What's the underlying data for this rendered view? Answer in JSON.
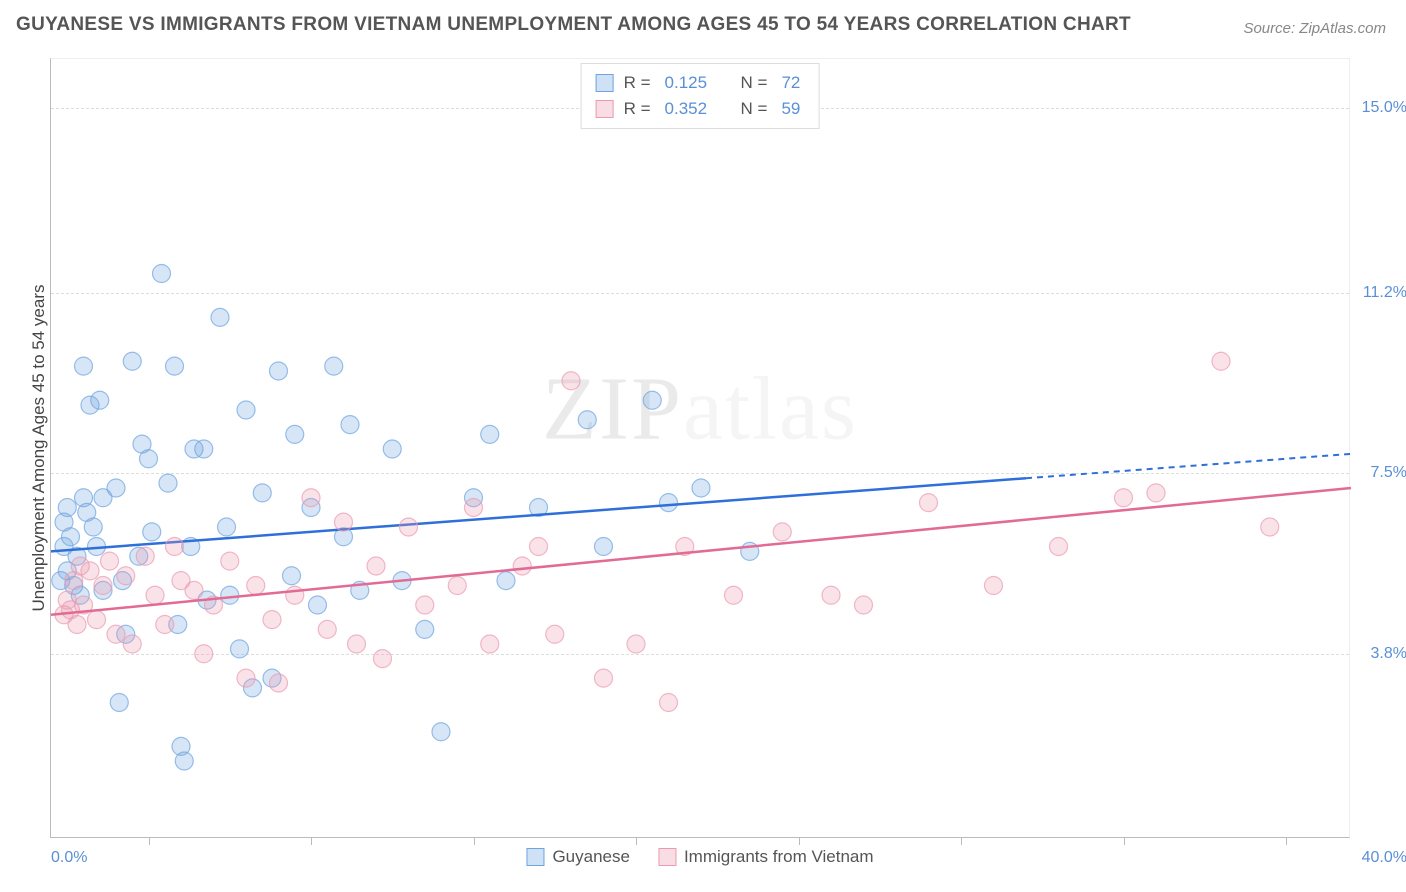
{
  "title": "GUYANESE VS IMMIGRANTS FROM VIETNAM UNEMPLOYMENT AMONG AGES 45 TO 54 YEARS CORRELATION CHART",
  "source_label": "Source: ZipAtlas.com",
  "watermark": "ZIPatlas",
  "chart": {
    "type": "scatter",
    "y_label": "Unemployment Among Ages 45 to 54 years",
    "xlim": [
      0,
      40
    ],
    "ylim": [
      0,
      16
    ],
    "x_min_label": "0.0%",
    "x_max_label": "40.0%",
    "y_tick_labels": [
      {
        "value": 15.0,
        "label": "15.0%"
      },
      {
        "value": 11.2,
        "label": "11.2%"
      },
      {
        "value": 7.5,
        "label": "7.5%"
      },
      {
        "value": 3.8,
        "label": "3.8%"
      }
    ],
    "gridlines_y": [
      15.0,
      11.2,
      7.5,
      3.8
    ],
    "x_ticks": [
      3,
      8,
      13,
      18,
      23,
      28,
      33,
      38
    ],
    "background_color": "#ffffff",
    "grid_color": "#dddddd",
    "axis_color": "#bbbbbb",
    "marker_radius": 9,
    "marker_fill_opacity": 0.28,
    "marker_stroke_opacity": 0.7,
    "line_width": 2.5,
    "series": [
      {
        "id": "guyanese",
        "label": "Guyanese",
        "color": "#6fa4e0",
        "line_color": "#2e6fd9",
        "r": "0.125",
        "n": "72",
        "trend": {
          "x1": 0,
          "y1": 5.9,
          "x2": 30,
          "y2": 7.4,
          "dash_x2": 40,
          "dash_y2": 7.9
        },
        "points": [
          [
            0.3,
            5.3
          ],
          [
            0.5,
            5.5
          ],
          [
            0.4,
            6.0
          ],
          [
            0.6,
            6.2
          ],
          [
            0.4,
            6.5
          ],
          [
            0.5,
            6.8
          ],
          [
            0.7,
            5.2
          ],
          [
            0.8,
            5.8
          ],
          [
            0.9,
            5.0
          ],
          [
            1.0,
            7.0
          ],
          [
            1.0,
            9.7
          ],
          [
            1.1,
            6.7
          ],
          [
            1.2,
            8.9
          ],
          [
            1.3,
            6.4
          ],
          [
            1.4,
            6.0
          ],
          [
            1.5,
            9.0
          ],
          [
            1.6,
            7.0
          ],
          [
            1.6,
            5.1
          ],
          [
            2.0,
            7.2
          ],
          [
            2.1,
            2.8
          ],
          [
            2.2,
            5.3
          ],
          [
            2.3,
            4.2
          ],
          [
            2.5,
            9.8
          ],
          [
            2.7,
            5.8
          ],
          [
            2.8,
            8.1
          ],
          [
            3.0,
            7.8
          ],
          [
            3.1,
            6.3
          ],
          [
            3.4,
            11.6
          ],
          [
            3.6,
            7.3
          ],
          [
            3.8,
            9.7
          ],
          [
            3.9,
            4.4
          ],
          [
            4.0,
            1.9
          ],
          [
            4.1,
            1.6
          ],
          [
            4.3,
            6.0
          ],
          [
            4.4,
            8.0
          ],
          [
            4.7,
            8.0
          ],
          [
            4.8,
            4.9
          ],
          [
            5.2,
            10.7
          ],
          [
            5.4,
            6.4
          ],
          [
            5.5,
            5.0
          ],
          [
            5.8,
            3.9
          ],
          [
            6.0,
            8.8
          ],
          [
            6.2,
            3.1
          ],
          [
            6.5,
            7.1
          ],
          [
            6.8,
            3.3
          ],
          [
            7.0,
            9.6
          ],
          [
            7.4,
            5.4
          ],
          [
            7.5,
            8.3
          ],
          [
            8.0,
            6.8
          ],
          [
            8.2,
            4.8
          ],
          [
            8.7,
            9.7
          ],
          [
            9.0,
            6.2
          ],
          [
            9.2,
            8.5
          ],
          [
            9.5,
            5.1
          ],
          [
            10.5,
            8.0
          ],
          [
            10.8,
            5.3
          ],
          [
            11.5,
            4.3
          ],
          [
            12.0,
            2.2
          ],
          [
            13.0,
            7.0
          ],
          [
            13.5,
            8.3
          ],
          [
            14.0,
            5.3
          ],
          [
            15.0,
            6.8
          ],
          [
            16.5,
            8.6
          ],
          [
            17.0,
            6.0
          ],
          [
            18.5,
            9.0
          ],
          [
            19.0,
            6.9
          ],
          [
            20.0,
            7.2
          ],
          [
            21.5,
            5.9
          ]
        ]
      },
      {
        "id": "vietnam",
        "label": "Immigrants from Vietnam",
        "color": "#eb9ab0",
        "line_color": "#e16b95",
        "r": "0.352",
        "n": "59",
        "trend": {
          "x1": 0,
          "y1": 4.6,
          "x2": 40,
          "y2": 7.2,
          "dash_x2": null,
          "dash_y2": null
        },
        "points": [
          [
            0.4,
            4.6
          ],
          [
            0.5,
            4.9
          ],
          [
            0.6,
            4.7
          ],
          [
            0.7,
            5.3
          ],
          [
            0.8,
            4.4
          ],
          [
            0.9,
            5.6
          ],
          [
            1.0,
            4.8
          ],
          [
            1.2,
            5.5
          ],
          [
            1.4,
            4.5
          ],
          [
            1.6,
            5.2
          ],
          [
            1.8,
            5.7
          ],
          [
            2.0,
            4.2
          ],
          [
            2.3,
            5.4
          ],
          [
            2.5,
            4.0
          ],
          [
            2.9,
            5.8
          ],
          [
            3.2,
            5.0
          ],
          [
            3.5,
            4.4
          ],
          [
            3.8,
            6.0
          ],
          [
            4.0,
            5.3
          ],
          [
            4.4,
            5.1
          ],
          [
            4.7,
            3.8
          ],
          [
            5.0,
            4.8
          ],
          [
            5.5,
            5.7
          ],
          [
            6.0,
            3.3
          ],
          [
            6.3,
            5.2
          ],
          [
            6.8,
            4.5
          ],
          [
            7.0,
            3.2
          ],
          [
            7.5,
            5.0
          ],
          [
            8.0,
            7.0
          ],
          [
            8.5,
            4.3
          ],
          [
            9.0,
            6.5
          ],
          [
            9.4,
            4.0
          ],
          [
            10.0,
            5.6
          ],
          [
            10.2,
            3.7
          ],
          [
            11.0,
            6.4
          ],
          [
            11.5,
            4.8
          ],
          [
            12.5,
            5.2
          ],
          [
            13.0,
            6.8
          ],
          [
            13.5,
            4.0
          ],
          [
            14.5,
            5.6
          ],
          [
            15.0,
            6.0
          ],
          [
            15.5,
            4.2
          ],
          [
            16.0,
            9.4
          ],
          [
            17.0,
            3.3
          ],
          [
            18.0,
            4.0
          ],
          [
            19.0,
            2.8
          ],
          [
            19.5,
            6.0
          ],
          [
            21.0,
            5.0
          ],
          [
            22.5,
            6.3
          ],
          [
            24.0,
            5.0
          ],
          [
            25.0,
            4.8
          ],
          [
            27.0,
            6.9
          ],
          [
            29.0,
            5.2
          ],
          [
            31.0,
            6.0
          ],
          [
            33.0,
            7.0
          ],
          [
            34.0,
            7.1
          ],
          [
            36.0,
            9.8
          ],
          [
            37.5,
            6.4
          ]
        ]
      }
    ]
  },
  "stat_box": {
    "r_label": "R  =",
    "n_label": "N  ="
  },
  "legend": {
    "items": [
      {
        "label": "Guyanese",
        "series": "guyanese"
      },
      {
        "label": "Immigrants from Vietnam",
        "series": "vietnam"
      }
    ]
  }
}
